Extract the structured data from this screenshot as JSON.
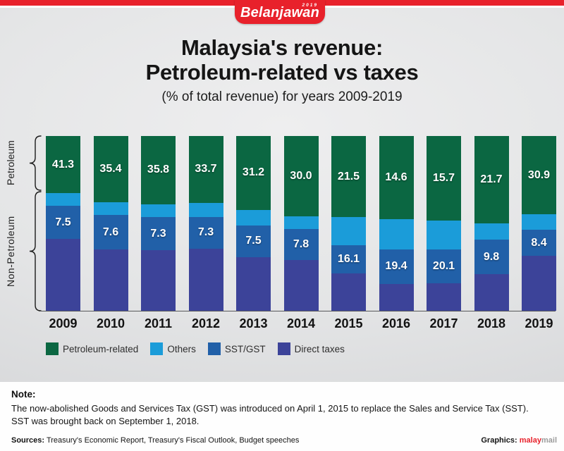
{
  "logo": {
    "text": "Belanjawan",
    "year": "2019"
  },
  "header": {
    "title_line1": "Malaysia's revenue:",
    "title_line2": "Petroleum-related vs taxes",
    "subtitle": "(% of total revenue) for years 2009-2019"
  },
  "chart_data": {
    "type": "bar",
    "stacked": true,
    "title": "Malaysia's revenue: Petroleum-related vs taxes",
    "subtitle": "(% of total revenue) for years 2009-2019",
    "unit": "% of total revenue",
    "legend_position": "bottom",
    "categories": [
      "2009",
      "2010",
      "2011",
      "2012",
      "2013",
      "2014",
      "2015",
      "2016",
      "2017",
      "2018",
      "2019"
    ],
    "series": [
      {
        "name": "Petroleum-related",
        "color": "#0b6742",
        "labeled": true,
        "values": [
          41.3,
          35.4,
          35.8,
          33.7,
          31.2,
          30.0,
          21.5,
          14.6,
          15.7,
          21.7,
          30.9
        ]
      },
      {
        "name": "Others",
        "color": "#1b9cd9",
        "labeled": false,
        "values": null
      },
      {
        "name": "SST/GST",
        "color": "#2160a8",
        "labeled": true,
        "values": [
          7.5,
          7.6,
          7.3,
          7.3,
          7.5,
          7.8,
          16.1,
          19.4,
          20.1,
          9.8,
          8.4
        ]
      },
      {
        "name": "Direct taxes",
        "color": "#3c4399",
        "labeled": false,
        "values": null
      }
    ],
    "group_axis": {
      "top_label": "Petroleum",
      "bottom_label": "Non-Petroleum"
    },
    "drawn_segment_heights_pct": [
      [
        32.7,
        7.3,
        19.0,
        41.0
      ],
      [
        37.9,
        7.3,
        19.8,
        35.0
      ],
      [
        39.1,
        7.3,
        19.0,
        34.6
      ],
      [
        38.3,
        8.1,
        18.1,
        35.5
      ],
      [
        42.3,
        8.9,
        18.1,
        30.7
      ],
      [
        46.0,
        7.3,
        17.7,
        29.0
      ],
      [
        46.4,
        16.1,
        16.1,
        21.4
      ],
      [
        47.6,
        17.3,
        19.8,
        15.3
      ],
      [
        48.4,
        16.5,
        19.4,
        15.7
      ],
      [
        50.0,
        9.3,
        19.8,
        20.9
      ],
      [
        44.8,
        8.9,
        14.9,
        31.4
      ]
    ]
  },
  "note": {
    "label": "Note:",
    "lines": [
      "The now-abolished Goods and Services Tax (GST) was introduced on April 1, 2015 to replace the Sales and Service Tax (SST).",
      "SST was brought back on September 1, 2018."
    ]
  },
  "footer": {
    "sources_label": "Sources:",
    "sources_text": "Treasury's Economic Report, Treasury's Fiscal Outlook, Budget speeches",
    "graphics_label": "Graphics:",
    "brand_red": "malay",
    "brand_gray": "mail"
  },
  "colors": {
    "accent_red": "#e8212b",
    "petroleum_green": "#0b6742",
    "others_blue": "#1b9cd9",
    "sst_blue": "#2160a8",
    "direct_navy": "#3c4399"
  }
}
